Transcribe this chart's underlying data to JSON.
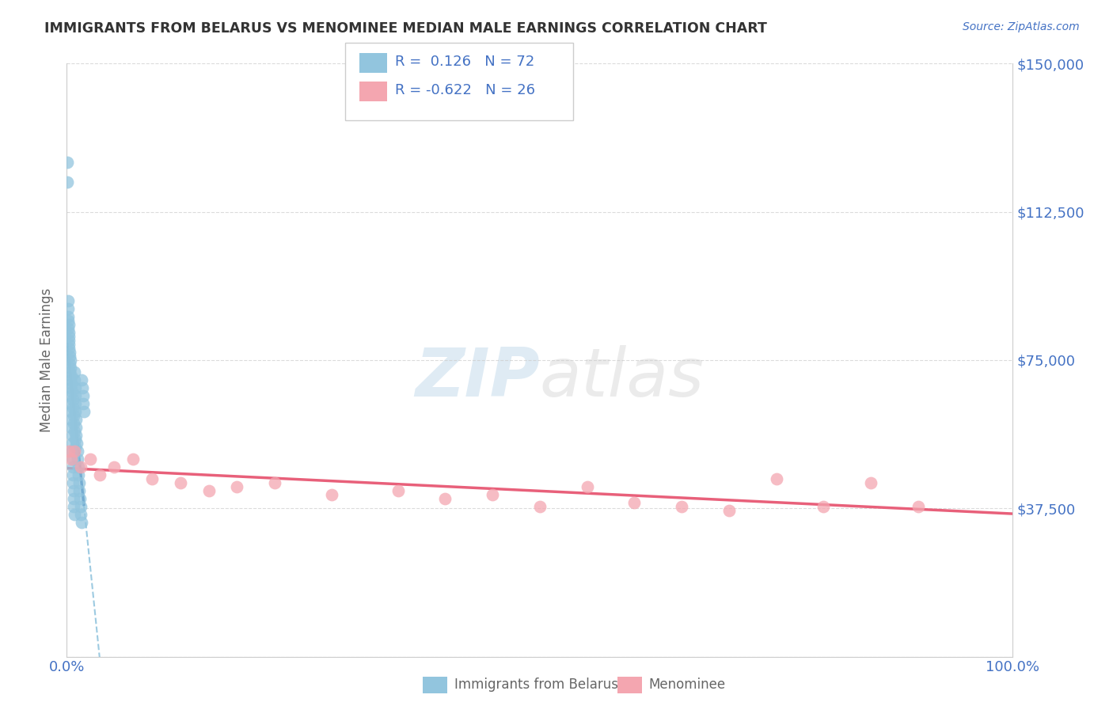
{
  "title": "IMMIGRANTS FROM BELARUS VS MENOMINEE MEDIAN MALE EARNINGS CORRELATION CHART",
  "source_text": "Source: ZipAtlas.com",
  "ylabel": "Median Male Earnings",
  "xmin": 0.0,
  "xmax": 100.0,
  "ymin": 0,
  "ymax": 150000,
  "yticks": [
    0,
    37500,
    75000,
    112500,
    150000
  ],
  "ytick_labels": [
    "",
    "$37,500",
    "$75,000",
    "$112,500",
    "$150,000"
  ],
  "xtick_labels": [
    "0.0%",
    "100.0%"
  ],
  "series1_label": "Immigrants from Belarus",
  "series1_R": 0.126,
  "series1_N": 72,
  "series1_color": "#92C5DE",
  "series1_edge_color": "#6AAAC8",
  "series1_line_color": "#2166AC",
  "series1_dash_color": "#92C5DE",
  "series2_label": "Menominee",
  "series2_R": -0.622,
  "series2_N": 26,
  "series2_color": "#F4A6B0",
  "series2_edge_color": "#E88898",
  "series2_line_color": "#E8607A",
  "watermark_zip": "ZIP",
  "watermark_atlas": "atlas",
  "background_color": "#FFFFFF",
  "grid_color": "#CCCCCC",
  "title_color": "#333333",
  "axis_label_color": "#666666",
  "tick_label_color": "#4472C4",
  "series1_x": [
    0.05,
    0.08,
    0.1,
    0.12,
    0.15,
    0.18,
    0.2,
    0.22,
    0.25,
    0.28,
    0.3,
    0.32,
    0.35,
    0.38,
    0.4,
    0.42,
    0.45,
    0.48,
    0.5,
    0.52,
    0.55,
    0.58,
    0.6,
    0.62,
    0.65,
    0.68,
    0.7,
    0.72,
    0.75,
    0.78,
    0.8,
    0.82,
    0.85,
    0.88,
    0.9,
    0.92,
    0.95,
    0.98,
    1.0,
    1.05,
    1.1,
    1.15,
    1.2,
    1.25,
    1.3,
    1.35,
    1.4,
    1.45,
    1.5,
    1.55,
    1.6,
    1.65,
    1.7,
    1.75,
    1.8,
    0.1,
    0.15,
    0.2,
    0.25,
    0.3,
    0.35,
    0.4,
    0.45,
    0.5,
    0.55,
    0.6,
    0.65,
    0.7,
    0.75,
    0.8,
    0.85,
    0.9
  ],
  "series1_y": [
    120000,
    125000,
    90000,
    88000,
    86000,
    84000,
    82000,
    80000,
    78000,
    76000,
    74000,
    72000,
    70000,
    68000,
    66000,
    64000,
    62000,
    60000,
    58000,
    56000,
    54000,
    52000,
    50000,
    48000,
    46000,
    44000,
    42000,
    40000,
    38000,
    36000,
    72000,
    70000,
    68000,
    66000,
    64000,
    62000,
    60000,
    58000,
    56000,
    54000,
    52000,
    50000,
    48000,
    46000,
    44000,
    42000,
    40000,
    38000,
    36000,
    34000,
    70000,
    68000,
    66000,
    64000,
    62000,
    85000,
    83000,
    81000,
    79000,
    77000,
    75000,
    73000,
    71000,
    69000,
    67000,
    65000,
    63000,
    61000,
    59000,
    57000,
    55000,
    53000
  ],
  "series2_x": [
    0.2,
    0.5,
    0.8,
    1.5,
    2.5,
    3.5,
    5.0,
    7.0,
    9.0,
    12.0,
    15.0,
    18.0,
    22.0,
    28.0,
    35.0,
    40.0,
    45.0,
    50.0,
    55.0,
    60.0,
    65.0,
    70.0,
    75.0,
    80.0,
    85.0,
    90.0
  ],
  "series2_y": [
    52000,
    50000,
    52000,
    48000,
    50000,
    46000,
    48000,
    50000,
    45000,
    44000,
    42000,
    43000,
    44000,
    41000,
    42000,
    40000,
    41000,
    38000,
    43000,
    39000,
    38000,
    37000,
    45000,
    38000,
    44000,
    38000
  ]
}
